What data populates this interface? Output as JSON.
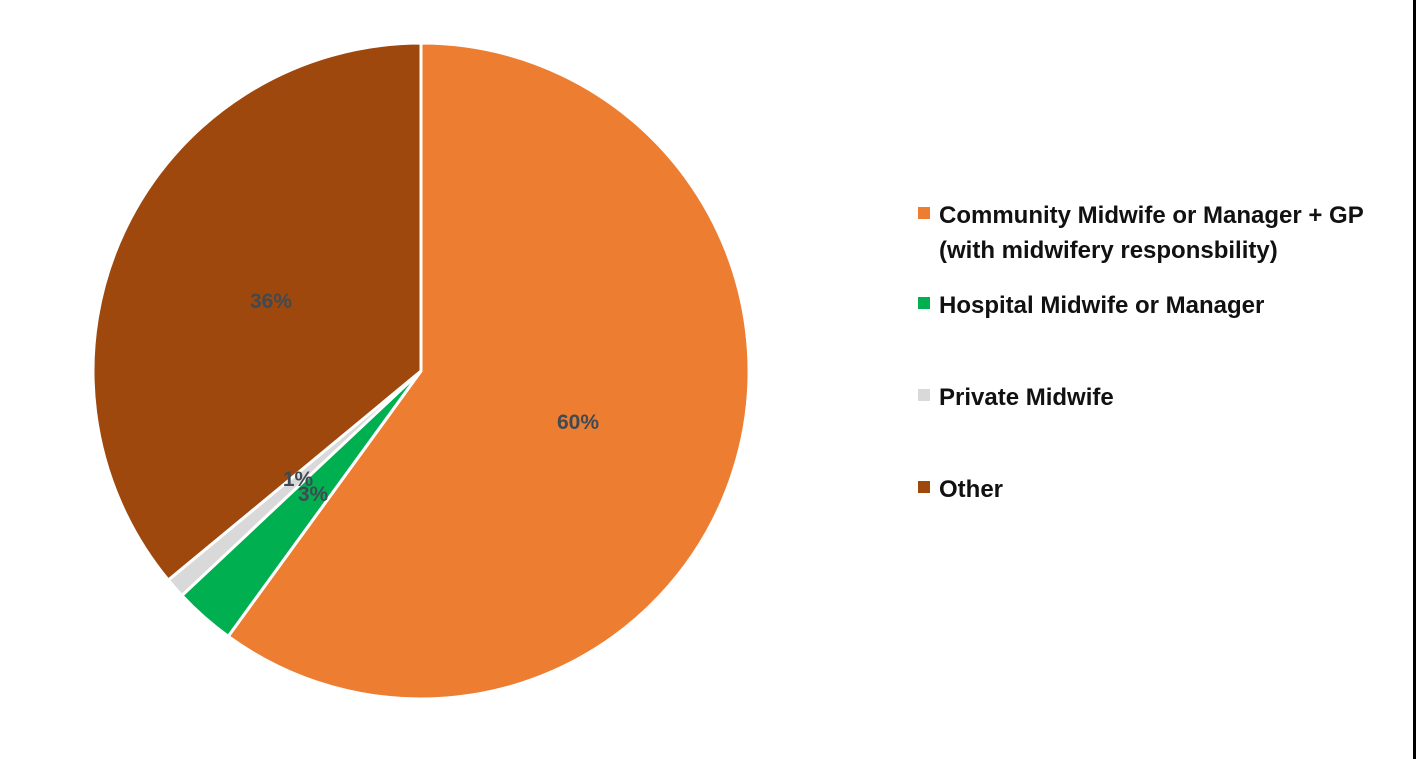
{
  "chart_data": {
    "type": "pie",
    "title": "",
    "categories": [
      "Community Midwife or Manager + GP (with midwifery responsbility)",
      "Hospital Midwife or Manager",
      "Private Midwife",
      "Other"
    ],
    "values": [
      60,
      3,
      1,
      36
    ],
    "labels": [
      "60%",
      "3%",
      "1%",
      "36%"
    ],
    "colors": [
      "#ed7d31",
      "#00b050",
      "#d9d9d9",
      "#9e480e"
    ],
    "start_angle": "12 o'clock, clockwise",
    "legend_position": "right"
  },
  "legend": {
    "items": [
      {
        "label": "Community Midwife or Manager + GP (with midwifery responsbility)",
        "color": "#ed7d31"
      },
      {
        "label": "Hospital Midwife or Manager",
        "color": "#00b050"
      },
      {
        "label": "Private Midwife",
        "color": "#d9d9d9"
      },
      {
        "label": "Other",
        "color": "#9e480e"
      }
    ]
  },
  "data_labels": {
    "community": "60%",
    "hospital": "3%",
    "private": "1%",
    "other": "36%"
  }
}
